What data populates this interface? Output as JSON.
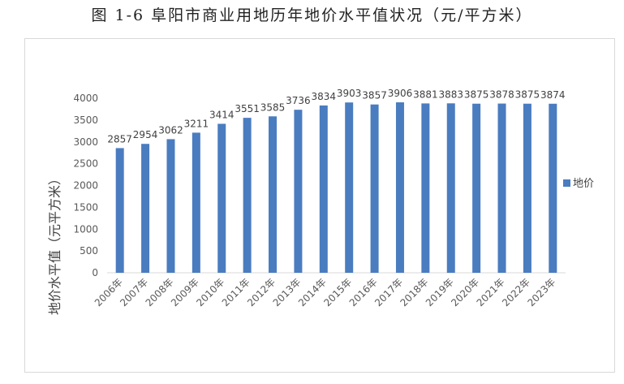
{
  "caption": "图 1-6 阜阳市商业用地历年地价水平值状况（元/平方米）",
  "chart_data": {
    "type": "bar",
    "categories": [
      "2006年",
      "2007年",
      "2008年",
      "2009年",
      "2010年",
      "2011年",
      "2012年",
      "2013年",
      "2014年",
      "2015年",
      "2016年",
      "2017年",
      "2018年",
      "2019年",
      "2020年",
      "2021年",
      "2022年",
      "2023年"
    ],
    "series": [
      {
        "name": "地价",
        "color": "#4a7cc0",
        "values": [
          2857,
          2954,
          3062,
          3211,
          3414,
          3551,
          3585,
          3736,
          3834,
          3903,
          3857,
          3906,
          3881,
          3883,
          3875,
          3878,
          3875,
          3874
        ]
      }
    ],
    "ylabel": "地价水平值（元平方米）",
    "ylim": [
      0,
      4000
    ],
    "yticks": [
      0,
      500,
      1000,
      1500,
      2000,
      2500,
      3000,
      3500,
      4000
    ],
    "grid": false,
    "legend": "right",
    "data_labels": true
  }
}
